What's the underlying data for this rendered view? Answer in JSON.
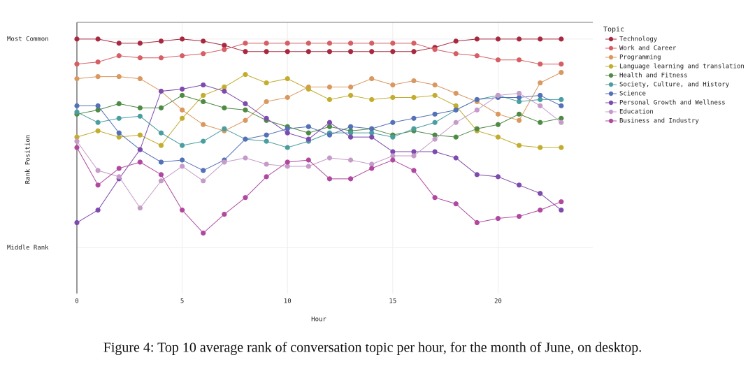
{
  "chart_data": {
    "type": "line",
    "x_label": "Hour",
    "y_label": "Rank Position",
    "legend_title": "Topic",
    "x": [
      0,
      1,
      2,
      3,
      4,
      5,
      6,
      7,
      8,
      9,
      10,
      11,
      12,
      13,
      14,
      15,
      16,
      17,
      18,
      19,
      20,
      21,
      22,
      23
    ],
    "xlim": [
      0,
      24.5
    ],
    "xticks": [
      0,
      5,
      10,
      15,
      20
    ],
    "ylim": [
      13.2,
      0.2
    ],
    "yticks": [
      {
        "value": 1,
        "label": "Most Common"
      },
      {
        "value": 11,
        "label": "Middle Rank"
      }
    ],
    "grid": true,
    "legend": "right",
    "series": [
      {
        "name": "Technology",
        "color": "#a8293f",
        "values": [
          1,
          1,
          1.2,
          1.2,
          1.1,
          1,
          1.1,
          1.3,
          1.6,
          1.6,
          1.6,
          1.6,
          1.6,
          1.6,
          1.6,
          1.6,
          1.6,
          1.4,
          1.1,
          1,
          1,
          1,
          1,
          1
        ]
      },
      {
        "name": "Work and Career",
        "color": "#d65f66",
        "values": [
          2.2,
          2.1,
          1.8,
          1.9,
          1.9,
          1.8,
          1.7,
          1.5,
          1.2,
          1.2,
          1.2,
          1.2,
          1.2,
          1.2,
          1.2,
          1.2,
          1.2,
          1.5,
          1.7,
          1.8,
          2.0,
          2.0,
          2.2,
          2.2
        ]
      },
      {
        "name": "Programming",
        "color": "#d9985f",
        "values": [
          2.9,
          2.8,
          2.8,
          2.9,
          3.5,
          4.4,
          5.1,
          5.4,
          4.9,
          4.0,
          3.8,
          3.3,
          3.3,
          3.3,
          2.9,
          3.2,
          3.0,
          3.2,
          3.6,
          4.0,
          4.6,
          4.9,
          3.1,
          2.6
        ]
      },
      {
        "name": "Language learning and translation",
        "color": "#c2ad30",
        "values": [
          5.7,
          5.4,
          5.7,
          5.6,
          6.1,
          4.8,
          3.7,
          3.3,
          2.7,
          3.1,
          2.9,
          3.4,
          3.9,
          3.7,
          3.9,
          3.8,
          3.8,
          3.7,
          4.2,
          5.4,
          5.7,
          6.1,
          6.2,
          6.2
        ]
      },
      {
        "name": "Health and Fitness",
        "color": "#4e8a44",
        "values": [
          4.6,
          4.4,
          4.1,
          4.3,
          4.3,
          3.7,
          4.0,
          4.3,
          4.4,
          4.9,
          5.2,
          5.5,
          5.2,
          5.4,
          5.3,
          5.6,
          5.4,
          5.6,
          5.7,
          5.3,
          5.1,
          4.6,
          5.0,
          4.8
        ]
      },
      {
        "name": "Society, Culture, and History",
        "color": "#4a9ea0",
        "values": [
          4.5,
          5.0,
          4.8,
          4.7,
          5.5,
          6.1,
          5.9,
          5.3,
          5.8,
          5.9,
          6.2,
          5.9,
          5.5,
          5.5,
          5.5,
          5.7,
          5.3,
          5.0,
          4.4,
          3.9,
          3.7,
          4.0,
          3.9,
          3.9
        ]
      },
      {
        "name": "Science",
        "color": "#5471b8",
        "values": [
          4.2,
          4.2,
          5.5,
          6.3,
          6.9,
          6.8,
          7.3,
          6.8,
          5.8,
          5.6,
          5.3,
          5.2,
          5.6,
          5.2,
          5.3,
          5.0,
          4.8,
          4.6,
          4.4,
          3.9,
          3.8,
          3.8,
          3.7,
          4.2
        ]
      },
      {
        "name": "Personal Growth and Wellness",
        "color": "#7e4aae",
        "values": [
          9.8,
          9.2,
          7.7,
          6.3,
          3.5,
          3.4,
          3.2,
          3.5,
          4.1,
          4.8,
          5.5,
          5.8,
          5.0,
          5.7,
          5.7,
          6.4,
          6.4,
          6.4,
          6.7,
          7.5,
          7.6,
          8.0,
          8.4,
          9.2
        ]
      },
      {
        "name": "Education",
        "color": "#c59bc9",
        "values": [
          5.9,
          7.3,
          7.6,
          9.1,
          7.8,
          7.1,
          7.8,
          6.9,
          6.7,
          7.0,
          7.1,
          7.1,
          6.7,
          6.8,
          7.0,
          6.6,
          6.6,
          5.8,
          5.0,
          4.4,
          3.7,
          3.6,
          4.2,
          5.0
        ]
      },
      {
        "name": "Business and Industry",
        "color": "#b0489f",
        "values": [
          6.2,
          8.0,
          7.2,
          6.9,
          7.5,
          9.2,
          10.3,
          9.4,
          8.6,
          7.6,
          6.9,
          6.8,
          7.7,
          7.7,
          7.2,
          6.8,
          7.3,
          8.6,
          8.9,
          9.8,
          9.6,
          9.5,
          9.2,
          8.8
        ]
      }
    ]
  },
  "caption": "Figure 4: Top 10 average rank of conversation topic per hour, for the month of June, on desktop."
}
